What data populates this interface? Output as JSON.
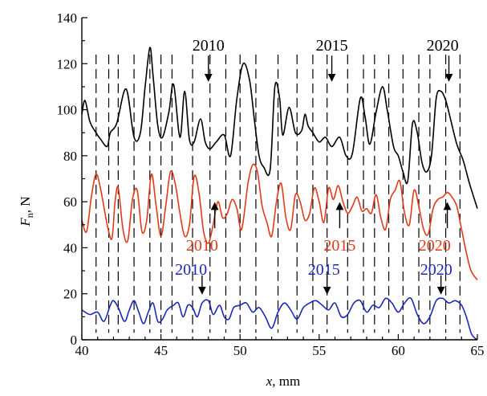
{
  "chart_data": {
    "type": "line",
    "title": "",
    "xlabel": {
      "var": "x",
      "unit": ", mm"
    },
    "ylabel": {
      "var": "F",
      "sub": "n",
      "unit": ", N"
    },
    "xlim": [
      40,
      65
    ],
    "ylim": [
      0,
      140
    ],
    "xticks": [
      40,
      45,
      50,
      55,
      60,
      65
    ],
    "yticks": [
      0,
      20,
      40,
      60,
      80,
      100,
      120,
      140
    ],
    "series": [
      {
        "color": "#000000",
        "x": [
          40.0,
          40.2,
          40.5,
          40.8,
          41.2,
          41.6,
          41.8,
          42.2,
          42.8,
          43.3,
          43.7,
          44.0,
          44.3,
          44.5,
          44.8,
          45.1,
          45.5,
          45.8,
          46.2,
          46.5,
          46.8,
          47.1,
          47.5,
          47.8,
          48.1,
          48.5,
          49.0,
          49.4,
          49.8,
          50.2,
          50.6,
          50.9,
          51.2,
          51.5,
          51.9,
          52.2,
          52.5,
          52.7,
          53.1,
          53.5,
          53.9,
          54.1,
          54.3,
          54.6,
          55.0,
          55.4,
          55.8,
          56.3,
          56.7,
          57.1,
          57.6,
          57.9,
          58.2,
          58.6,
          59.0,
          59.3,
          59.7,
          60.0,
          60.3,
          60.6,
          60.9,
          61.2,
          61.5,
          61.8,
          62.1,
          62.4,
          62.7,
          63.0,
          63.3,
          63.7,
          64.1,
          64.5,
          65.0
        ],
        "y": [
          98,
          104,
          95,
          91,
          87,
          84,
          90,
          94,
          109,
          88,
          90,
          110,
          127,
          115,
          93,
          88,
          99,
          111,
          88,
          108,
          87,
          86,
          96,
          86,
          83,
          86,
          89,
          80,
          105,
          120,
          113,
          96,
          80,
          75,
          74,
          110,
          105,
          89,
          101,
          90,
          91,
          98,
          93,
          90,
          86,
          88,
          84,
          88,
          80,
          81,
          105,
          97,
          85,
          99,
          110,
          100,
          84,
          80,
          73,
          69,
          94,
          90,
          77,
          73,
          80,
          105,
          108,
          104,
          96,
          85,
          78,
          68,
          57
        ]
      },
      {
        "color": "#e03a1a",
        "x": [
          40.0,
          40.3,
          40.6,
          40.9,
          41.2,
          41.6,
          41.9,
          42.1,
          42.3,
          42.6,
          42.9,
          43.2,
          43.5,
          43.8,
          44.1,
          44.4,
          44.7,
          45.0,
          45.3,
          45.6,
          45.9,
          46.2,
          46.5,
          46.8,
          47.1,
          47.4,
          47.7,
          48.0,
          48.3,
          48.6,
          48.9,
          49.2,
          49.5,
          49.8,
          50.1,
          50.5,
          50.8,
          51.1,
          51.4,
          51.7,
          52.0,
          52.3,
          52.6,
          52.9,
          53.2,
          53.5,
          53.8,
          54.1,
          54.4,
          54.7,
          55.0,
          55.3,
          55.6,
          55.9,
          56.2,
          56.5,
          56.8,
          57.1,
          57.4,
          57.7,
          58.0,
          58.3,
          58.6,
          58.9,
          59.2,
          59.5,
          59.8,
          60.1,
          60.4,
          60.7,
          61.0,
          61.3,
          61.6,
          61.9,
          62.2,
          62.5,
          62.8,
          63.1,
          63.4,
          63.7,
          64.0,
          64.3,
          64.6,
          65.0
        ],
        "y": [
          52,
          47,
          62,
          72,
          65,
          50,
          44,
          60,
          66,
          48,
          43,
          61,
          65,
          47,
          52,
          72,
          58,
          45,
          58,
          73,
          68,
          55,
          45,
          50,
          71,
          64,
          47,
          42,
          50,
          60,
          53,
          55,
          61,
          57,
          48,
          68,
          76,
          73,
          58,
          51,
          45,
          60,
          68,
          53,
          48,
          63,
          60,
          52,
          55,
          66,
          60,
          51,
          66,
          61,
          67,
          60,
          55,
          58,
          62,
          56,
          57,
          55,
          63,
          53,
          48,
          61,
          65,
          69,
          55,
          50,
          65,
          58,
          48,
          46,
          57,
          61,
          62,
          64,
          62,
          58,
          48,
          38,
          30,
          26
        ]
      },
      {
        "color": "#1a2ab8",
        "x": [
          40.0,
          40.5,
          41.0,
          41.4,
          41.8,
          42.0,
          42.3,
          42.7,
          43.0,
          43.3,
          43.6,
          43.9,
          44.2,
          44.5,
          44.8,
          45.1,
          45.4,
          45.8,
          46.1,
          46.4,
          46.7,
          47.0,
          47.3,
          47.6,
          48.0,
          48.3,
          48.7,
          49.0,
          49.3,
          49.6,
          50.0,
          50.4,
          50.8,
          51.2,
          51.6,
          52.0,
          52.4,
          52.8,
          53.2,
          53.6,
          54.0,
          54.4,
          54.8,
          55.2,
          55.6,
          56.0,
          56.4,
          56.8,
          57.2,
          57.6,
          58.0,
          58.4,
          58.8,
          59.2,
          59.6,
          60.0,
          60.4,
          60.8,
          61.2,
          61.6,
          62.0,
          62.4,
          62.8,
          63.2,
          63.6,
          64.0,
          64.3,
          64.6,
          64.8,
          65.0
        ],
        "y": [
          13,
          11,
          12,
          8,
          15,
          17,
          14,
          8,
          13,
          17,
          12,
          7,
          12,
          16,
          8,
          9,
          13,
          15,
          16,
          10,
          15,
          14,
          10,
          16,
          17,
          11,
          15,
          10,
          9,
          14,
          15,
          16,
          12,
          14,
          10,
          5,
          12,
          16,
          13,
          9,
          14,
          16,
          17,
          15,
          13,
          16,
          10,
          11,
          16,
          17,
          12,
          15,
          14,
          18,
          16,
          12,
          16,
          18,
          11,
          7,
          10,
          17,
          18,
          16,
          17,
          15,
          10,
          3,
          1,
          0
        ]
      }
    ],
    "dashed_lines_x": [
      40.9,
      41.7,
      42.3,
      43.3,
      44.3,
      45.0,
      45.7,
      47.0,
      48.1,
      49.1,
      50.0,
      51.0,
      52.4,
      53.6,
      54.6,
      55.5,
      56.8,
      57.8,
      58.5,
      59.4,
      60.3,
      61.3,
      62.0,
      63.0,
      63.9
    ],
    "annotations": [
      {
        "text": "2010",
        "color": "#000000",
        "x": 48.0,
        "y": 128.5,
        "arrow_from": 123.5,
        "arrow_to": 112.5
      },
      {
        "text": "2015",
        "color": "#000000",
        "x": 55.8,
        "y": 128.5,
        "arrow_from": 123.5,
        "arrow_to": 112.5
      },
      {
        "text": "2020",
        "color": "#000000",
        "x": 62.8,
        "y": 128.5,
        "arrow_from": 123.5,
        "arrow_to": 112.5
      },
      {
        "text": "2010",
        "color": "#e03a1a",
        "x": 47.6,
        "y": 41.5,
        "arrow_from": 48.5,
        "arrow_to": 59.5
      },
      {
        "text": "2015",
        "color": "#e03a1a",
        "x": 56.3,
        "y": 41.5,
        "arrow_from": 48.5,
        "arrow_to": 59.5
      },
      {
        "text": "2020",
        "color": "#e03a1a",
        "x": 62.3,
        "y": 41.5,
        "arrow_from": 48.5,
        "arrow_to": 59.5
      },
      {
        "text": "2010",
        "color": "#1a2ab8",
        "x": 46.9,
        "y": 31.0,
        "arrow_from": 28.0,
        "arrow_to": 20.0
      },
      {
        "text": "2015",
        "color": "#1a2ab8",
        "x": 55.3,
        "y": 31.0,
        "arrow_from": 28.0,
        "arrow_to": 20.0
      },
      {
        "text": "2020",
        "color": "#1a2ab8",
        "x": 62.4,
        "y": 31.0,
        "arrow_from": 28.0,
        "arrow_to": 20.0
      }
    ],
    "arrow_x": [
      48.0,
      55.8,
      63.2,
      48.4,
      56.3,
      63.1,
      47.6,
      55.5,
      62.7
    ],
    "grid": false,
    "legend": "none"
  }
}
